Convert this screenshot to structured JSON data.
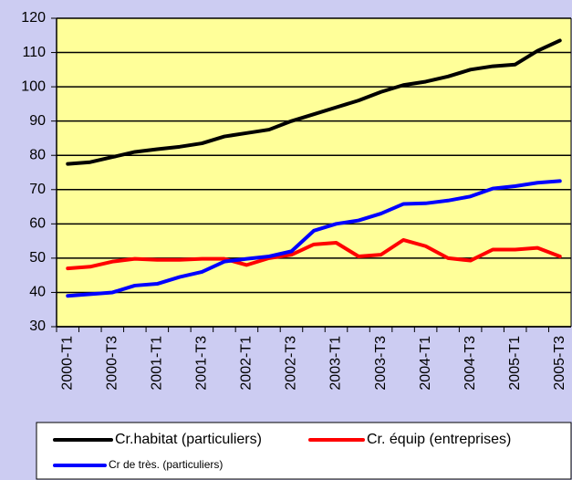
{
  "chart_data": {
    "type": "line",
    "categories": [
      "2000-T1",
      null,
      "2000-T3",
      null,
      "2001-T1",
      null,
      "2001-T3",
      null,
      "2002-T1",
      null,
      "2002-T3",
      null,
      "2003-T1",
      null,
      "2003-T3",
      null,
      "2004-T1",
      null,
      "2004-T3",
      null,
      "2005-T1",
      null,
      "2005-T3"
    ],
    "series": [
      {
        "name": "Cr.habitat (particuliers)",
        "color": "#000000",
        "values": [
          77.5,
          78,
          79.5,
          81,
          81.8,
          82.5,
          83.5,
          85.5,
          86.5,
          87.5,
          90,
          92,
          94,
          96,
          98.5,
          100.5,
          101.5,
          103,
          105,
          106,
          106.5,
          110.5,
          113.5
        ]
      },
      {
        "name": "Cr. équip (entreprises)",
        "color": "#ff0000",
        "values": [
          47,
          47.5,
          49,
          49.8,
          49.5,
          49.5,
          49.8,
          49.8,
          48,
          50,
          51,
          54,
          54.5,
          50.5,
          51,
          55.3,
          53.5,
          50,
          49.3,
          52.5,
          52.5,
          53,
          50.5
        ]
      },
      {
        "name": "Cr de très. (particuliers)",
        "color": "#0000ff",
        "values": [
          39,
          39.5,
          40,
          42,
          42.5,
          44.5,
          46,
          49,
          49.8,
          50.5,
          52,
          58,
          60,
          61,
          63,
          65.8,
          66,
          66.8,
          68,
          70.3,
          71,
          72,
          72.5
        ]
      }
    ],
    "ylim": [
      30,
      120
    ],
    "yticks": [
      30,
      40,
      50,
      60,
      70,
      80,
      90,
      100,
      110,
      120
    ],
    "grid": true
  }
}
